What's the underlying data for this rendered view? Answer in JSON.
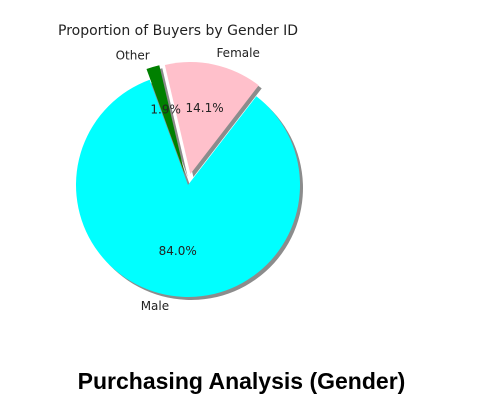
{
  "chart_data": {
    "type": "pie",
    "title": "Proportion of Buyers by Gender ID",
    "categories": [
      "Male",
      "Female",
      "Other"
    ],
    "values": [
      84.0,
      14.1,
      1.9
    ],
    "value_labels": [
      "84.0%",
      "14.1%",
      "1.9%"
    ],
    "colors": [
      "#00ffff",
      "#ffc0cb",
      "#008000"
    ],
    "exploded": [
      "Female",
      "Other"
    ],
    "shadow": true,
    "legend": "none"
  },
  "caption": "Purchasing Analysis (Gender)"
}
